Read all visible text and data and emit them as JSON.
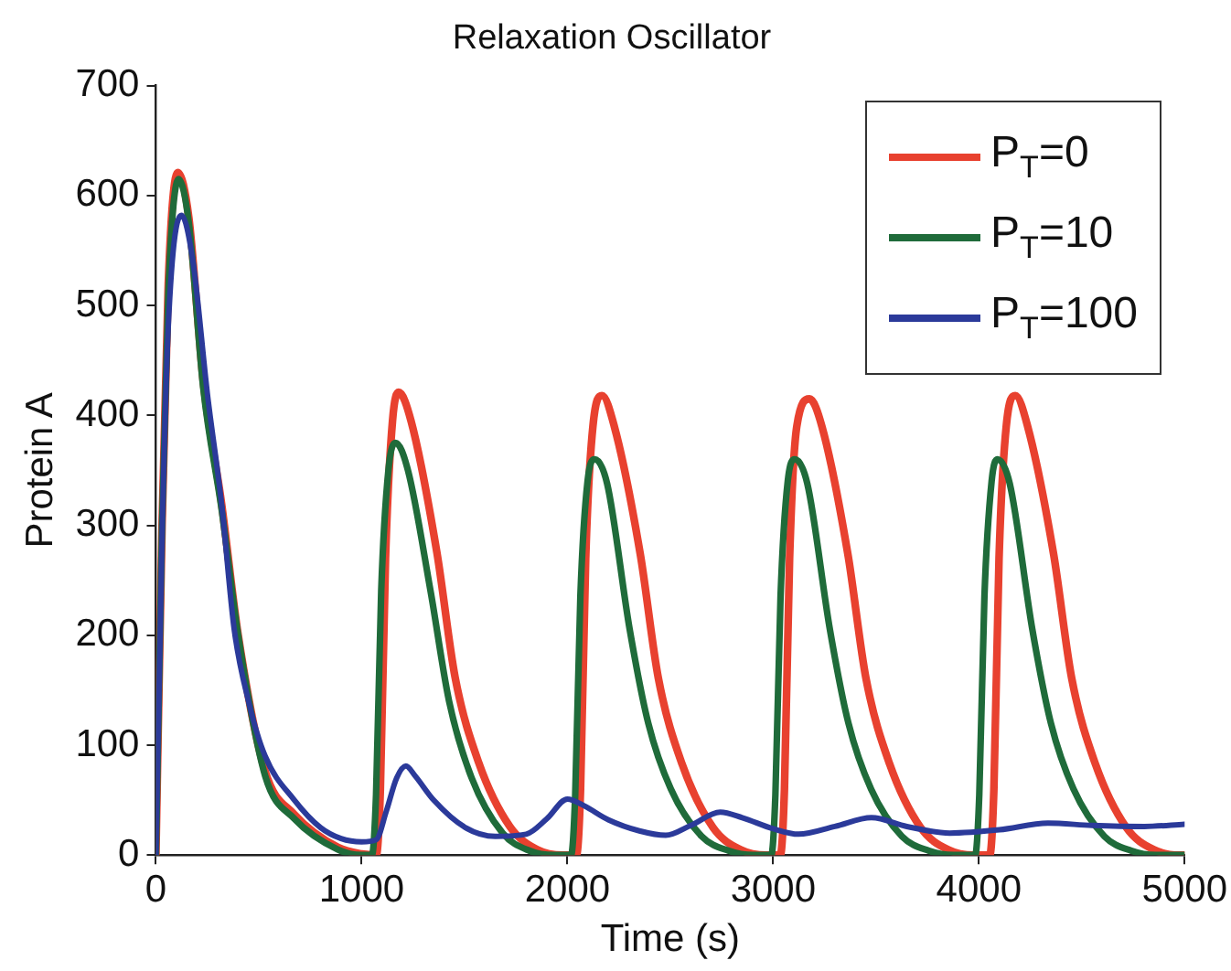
{
  "chart_data": {
    "type": "line",
    "title": "Relaxation Oscillator",
    "xlabel": "Time (s)",
    "ylabel": "Protein A",
    "xlim": [
      0,
      5000
    ],
    "xticks": [
      0,
      1000,
      2000,
      3000,
      4000,
      5000
    ],
    "ylim": [
      0,
      700
    ],
    "yticks": [
      0,
      100,
      200,
      300,
      400,
      500,
      600,
      700
    ],
    "grid": false,
    "legend": "top right",
    "series": [
      {
        "name": "P$_{T}$=0",
        "color": "#e8412f",
        "x": [
          0,
          30,
          60,
          106,
          160,
          230,
          319,
          400,
          531,
          673,
          885,
          1000,
          1071,
          1091,
          1116,
          1150,
          1180,
          1240,
          1366,
          1454,
          1569,
          1720,
          1853,
          1980,
          2044,
          2064,
          2089,
          2124,
          2168,
          2228,
          2354,
          2442,
          2557,
          2708,
          2841,
          2968,
          3035,
          3055,
          3080,
          3115,
          3177,
          3237,
          3363,
          3451,
          3566,
          3717,
          3850,
          3977,
          4053,
          4073,
          4098,
          4133,
          4177,
          4237,
          4363,
          4451,
          4566,
          4717,
          4850,
          4977,
          5000
        ],
        "values": [
          0,
          300,
          520,
          621,
          580,
          431,
          320,
          200,
          76,
          37,
          7,
          1,
          0,
          60,
          270,
          395,
          421,
          395,
          275,
          162,
          84,
          26,
          5,
          0,
          0,
          60,
          270,
          390,
          418,
          390,
          274,
          161,
          83,
          25,
          5,
          0,
          0,
          60,
          270,
          390,
          415,
          390,
          274,
          161,
          83,
          25,
          5,
          0,
          0,
          60,
          270,
          390,
          418,
          390,
          274,
          161,
          83,
          25,
          5,
          0,
          0
        ]
      },
      {
        "name": "P$_{T}$=10",
        "color": "#1f6b3a",
        "x": [
          0,
          30,
          60,
          110,
          160,
          230,
          319,
          400,
          531,
          673,
          885,
          1000,
          1050,
          1070,
          1095,
          1130,
          1165,
          1225,
          1335,
          1425,
          1535,
          1685,
          1815,
          1935,
          2018,
          2038,
          2063,
          2098,
          2133,
          2193,
          2303,
          2393,
          2503,
          2653,
          2783,
          2903,
          2991,
          3011,
          3036,
          3071,
          3106,
          3166,
          3276,
          3366,
          3476,
          3626,
          3756,
          3876,
          3982,
          4002,
          4027,
          4062,
          4090,
          4150,
          4260,
          4350,
          4460,
          4610,
          4740,
          4860,
          5000
        ],
        "values": [
          0,
          300,
          510,
          615,
          575,
          425,
          315,
          200,
          72,
          33,
          5,
          0,
          0,
          55,
          240,
          350,
          375,
          350,
          240,
          140,
          70,
          20,
          4,
          0,
          0,
          55,
          235,
          340,
          360,
          338,
          205,
          120,
          60,
          17,
          4,
          0,
          0,
          55,
          235,
          340,
          360,
          338,
          205,
          120,
          60,
          17,
          4,
          0,
          0,
          55,
          235,
          340,
          360,
          338,
          205,
          120,
          60,
          17,
          4,
          0,
          0
        ]
      },
      {
        "name": "P$_{T}$=100",
        "color": "#2b3a9a",
        "x": [
          0,
          30,
          60,
          124,
          180,
          250,
          319,
          380,
          450,
          531,
          673,
          800,
          900,
          1000,
          1071,
          1120,
          1170,
          1215,
          1260,
          1350,
          1504,
          1650,
          1800,
          1900,
          2000,
          2080,
          2200,
          2350,
          2478,
          2600,
          2743,
          2850,
          3000,
          3124,
          3300,
          3478,
          3650,
          3858,
          4100,
          4336,
          4550,
          4805,
          5000
        ],
        "values": [
          0,
          290,
          480,
          582,
          540,
          420,
          320,
          206,
          140,
          90,
          50,
          25,
          15,
          12,
          14,
          40,
          70,
          81,
          72,
          50,
          25,
          17,
          19,
          33,
          51,
          45,
          32,
          22,
          18,
          27,
          39,
          34,
          24,
          19,
          26,
          34,
          26,
          20,
          23,
          29,
          27,
          26,
          28
        ]
      }
    ]
  }
}
